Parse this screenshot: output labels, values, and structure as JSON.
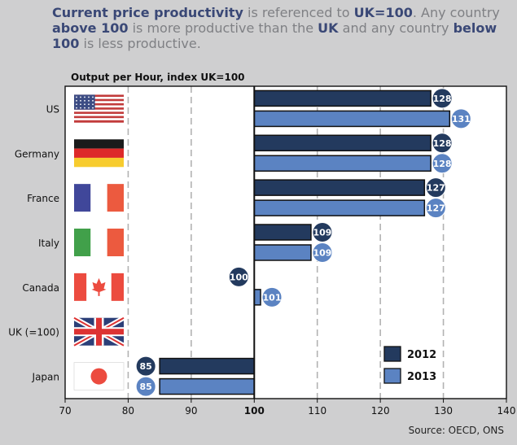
{
  "intro": {
    "p1": "Current price productivity",
    "p2": " is referenced to ",
    "p3": "UK=100",
    "p4": ". Any country ",
    "p5": "above 100",
    "p6": " is more productive than the ",
    "p7": "UK",
    "p8": " and any country ",
    "p9": "below 100",
    "p10": " is less productive."
  },
  "colors": {
    "s2012": "#233a5e",
    "s2013": "#5b83c2",
    "panel": "#ffffff",
    "background": "#cfcfd0"
  },
  "chart_data": {
    "type": "bar",
    "orientation": "horizontal",
    "title": "Output per Hour, index UK=100",
    "baseline": 100,
    "categories": [
      "US",
      "Germany",
      "France",
      "Italy",
      "Canada",
      "UK (=100)",
      "Japan"
    ],
    "flags": [
      "us-flag",
      "germany-flag",
      "france-flag",
      "italy-flag",
      "canada-flag",
      "uk-flag",
      "japan-flag"
    ],
    "series": [
      {
        "name": "2012",
        "values": [
          128,
          128,
          127,
          109,
          100,
          100,
          85
        ]
      },
      {
        "name": "2013",
        "values": [
          131,
          128,
          127,
          109,
          101,
          100,
          85
        ]
      }
    ],
    "labels": [
      [
        "128",
        "131"
      ],
      [
        "128",
        "128"
      ],
      [
        "127",
        "127"
      ],
      [
        "109",
        "109"
      ],
      [
        "100",
        "101"
      ],
      [
        "",
        ""
      ],
      [
        "85",
        "85"
      ]
    ],
    "xlim": [
      70,
      140
    ],
    "xticks": [
      "70",
      "80",
      "90",
      "100",
      "110",
      "120",
      "130",
      "140"
    ],
    "grid": true,
    "legend_position": "bottom-right"
  },
  "source": "Source: OECD, ONS"
}
